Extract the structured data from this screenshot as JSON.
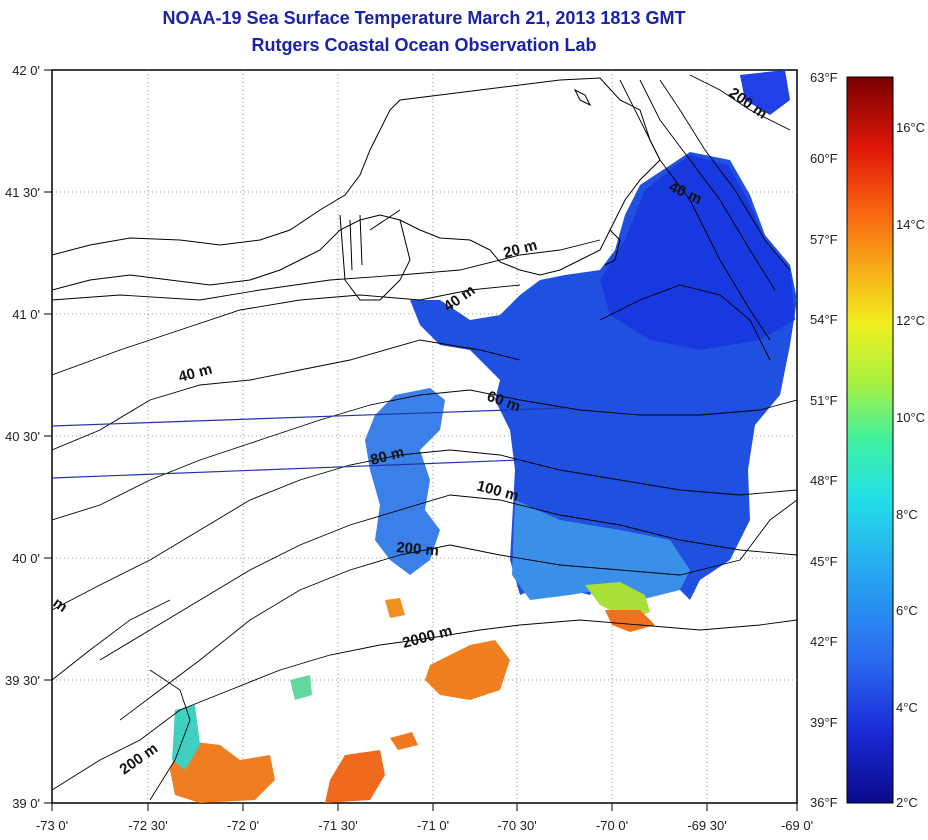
{
  "title_line1": "NOAA-19 Sea Surface Temperature March 21, 2013 1813 GMT",
  "title_line2": "Rutgers Coastal Ocean Observation Lab",
  "lat_labels": [
    "42 0'",
    "41 30'",
    "41 0'",
    "40 30'",
    "40 0'",
    "39 30'",
    "39 0'"
  ],
  "lon_labels": [
    "-73 0'",
    "-72 30'",
    "-72 0'",
    "-71 30'",
    "-71 0'",
    "-70 30'",
    "-70 0'",
    "-69 30'",
    "-69 0'"
  ],
  "fahrenheit_labels": [
    "63°F",
    "60°F",
    "57°F",
    "54°F",
    "51°F",
    "48°F",
    "45°F",
    "42°F",
    "39°F",
    "36°F"
  ],
  "celsius_labels": [
    "16°C",
    "14°C",
    "12°C",
    "10°C",
    "8°C",
    "6°C",
    "4°C",
    "2°C"
  ],
  "depth_labels": [
    "200 m",
    "40 m",
    "20 m",
    "40 m",
    "40 m",
    "60 m",
    "80 m",
    "100 m",
    "200 m",
    "2000 m",
    "200 m",
    "m"
  ],
  "colors": {
    "title": "#1a22a8",
    "colorbar_low": "#0a0a8a",
    "colorbar_high": "#7a0000"
  }
}
